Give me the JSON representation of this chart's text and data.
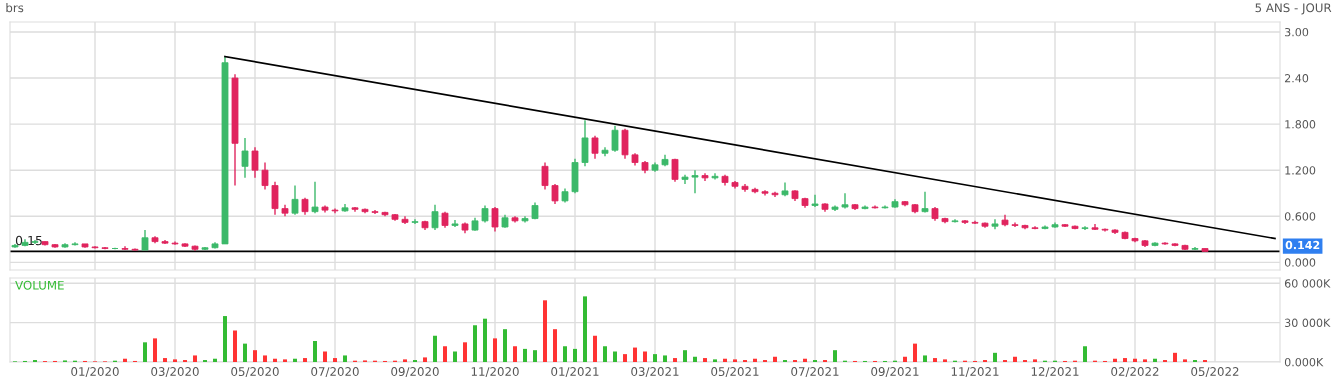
{
  "chart_data": [
    {
      "type": "candlestick",
      "title": "brs",
      "subtitle": "5 ANS - JOUR",
      "categories": [
        null,
        null,
        null,
        null,
        null,
        null,
        null,
        null,
        null,
        null,
        null,
        null,
        null,
        null,
        null,
        null,
        null,
        null,
        null,
        null,
        null,
        null,
        null,
        null,
        null,
        null,
        null,
        null,
        null,
        null,
        null,
        null,
        null,
        null,
        null,
        null,
        null,
        null,
        null,
        null,
        null,
        null,
        null,
        null,
        null,
        null,
        null,
        null,
        null,
        null,
        null,
        null,
        null,
        null,
        null,
        null,
        null,
        null,
        null,
        null,
        null,
        null,
        null,
        null,
        null,
        null,
        null,
        null,
        null,
        null,
        null,
        null,
        null,
        null,
        null,
        null,
        null,
        null,
        null,
        null,
        null,
        null,
        null,
        null,
        null,
        null,
        null,
        null,
        null,
        null,
        null,
        null,
        null,
        null,
        null,
        null,
        null,
        null,
        null,
        null,
        null,
        null,
        null,
        null,
        null,
        null,
        null,
        null,
        null,
        null,
        null,
        null,
        null,
        null,
        null,
        null,
        null,
        null,
        null,
        null,
        null,
        null,
        null,
        null,
        null,
        null,
        null
      ],
      "ohlc": [
        [
          0.2,
          0.24,
          0.19,
          0.22
        ],
        [
          0.22,
          0.3,
          0.21,
          0.26
        ],
        [
          0.26,
          0.29,
          0.24,
          0.27
        ],
        [
          0.27,
          0.27,
          0.22,
          0.23
        ],
        [
          0.23,
          0.24,
          0.19,
          0.2
        ],
        [
          0.2,
          0.25,
          0.19,
          0.23
        ],
        [
          0.23,
          0.26,
          0.22,
          0.24
        ],
        [
          0.24,
          0.24,
          0.19,
          0.2
        ],
        [
          0.2,
          0.21,
          0.18,
          0.19
        ],
        [
          0.19,
          0.2,
          0.17,
          0.18
        ],
        [
          0.18,
          0.19,
          0.17,
          0.18
        ],
        [
          0.18,
          0.21,
          0.16,
          0.17
        ],
        [
          0.17,
          0.18,
          0.15,
          0.16
        ],
        [
          0.16,
          0.42,
          0.16,
          0.32
        ],
        [
          0.32,
          0.34,
          0.25,
          0.27
        ],
        [
          0.27,
          0.29,
          0.24,
          0.25
        ],
        [
          0.25,
          0.27,
          0.23,
          0.24
        ],
        [
          0.24,
          0.25,
          0.2,
          0.21
        ],
        [
          0.21,
          0.22,
          0.15,
          0.17
        ],
        [
          0.17,
          0.2,
          0.16,
          0.19
        ],
        [
          0.19,
          0.26,
          0.18,
          0.24
        ],
        [
          0.24,
          2.68,
          0.24,
          2.6
        ],
        [
          2.4,
          2.45,
          1.0,
          1.55
        ],
        [
          1.25,
          1.62,
          1.1,
          1.45
        ],
        [
          1.45,
          1.5,
          1.1,
          1.2
        ],
        [
          1.2,
          1.3,
          0.95,
          1.0
        ],
        [
          1.0,
          1.05,
          0.62,
          0.7
        ],
        [
          0.7,
          0.75,
          0.6,
          0.64
        ],
        [
          0.64,
          1.0,
          0.62,
          0.82
        ],
        [
          0.82,
          0.84,
          0.62,
          0.66
        ],
        [
          0.66,
          1.05,
          0.64,
          0.72
        ],
        [
          0.72,
          0.74,
          0.65,
          0.68
        ],
        [
          0.68,
          0.7,
          0.64,
          0.67
        ],
        [
          0.67,
          0.76,
          0.66,
          0.71
        ],
        [
          0.71,
          0.72,
          0.66,
          0.69
        ],
        [
          0.69,
          0.7,
          0.64,
          0.66
        ],
        [
          0.66,
          0.68,
          0.63,
          0.65
        ],
        [
          0.65,
          0.66,
          0.6,
          0.62
        ],
        [
          0.62,
          0.63,
          0.54,
          0.56
        ],
        [
          0.56,
          0.6,
          0.5,
          0.52
        ],
        [
          0.52,
          0.56,
          0.5,
          0.53
        ],
        [
          0.53,
          0.54,
          0.42,
          0.45
        ],
        [
          0.45,
          0.75,
          0.42,
          0.66
        ],
        [
          0.64,
          0.66,
          0.45,
          0.48
        ],
        [
          0.48,
          0.55,
          0.46,
          0.5
        ],
        [
          0.5,
          0.52,
          0.38,
          0.42
        ],
        [
          0.42,
          0.58,
          0.41,
          0.54
        ],
        [
          0.54,
          0.74,
          0.52,
          0.7
        ],
        [
          0.7,
          0.72,
          0.4,
          0.46
        ],
        [
          0.46,
          0.62,
          0.45,
          0.58
        ],
        [
          0.58,
          0.6,
          0.52,
          0.54
        ],
        [
          0.54,
          0.6,
          0.52,
          0.57
        ],
        [
          0.57,
          0.78,
          0.56,
          0.74
        ],
        [
          1.25,
          1.3,
          0.95,
          1.0
        ],
        [
          1.0,
          1.02,
          0.76,
          0.8
        ],
        [
          0.8,
          0.96,
          0.78,
          0.92
        ],
        [
          0.92,
          1.35,
          0.9,
          1.3
        ],
        [
          1.3,
          1.85,
          1.25,
          1.62
        ],
        [
          1.62,
          1.65,
          1.35,
          1.42
        ],
        [
          1.42,
          1.5,
          1.38,
          1.46
        ],
        [
          1.46,
          1.78,
          1.44,
          1.72
        ],
        [
          1.72,
          1.74,
          1.35,
          1.4
        ],
        [
          1.4,
          1.42,
          1.26,
          1.3
        ],
        [
          1.3,
          1.32,
          1.16,
          1.2
        ],
        [
          1.2,
          1.3,
          1.18,
          1.27
        ],
        [
          1.27,
          1.4,
          1.25,
          1.34
        ],
        [
          1.34,
          1.35,
          1.05,
          1.08
        ],
        [
          1.08,
          1.14,
          1.02,
          1.11
        ],
        [
          1.11,
          1.2,
          0.9,
          1.13
        ],
        [
          1.13,
          1.16,
          1.06,
          1.1
        ],
        [
          1.1,
          1.16,
          1.08,
          1.12
        ],
        [
          1.12,
          1.14,
          1.0,
          1.04
        ],
        [
          1.04,
          1.06,
          0.96,
          0.99
        ],
        [
          0.99,
          1.02,
          0.92,
          0.95
        ],
        [
          0.95,
          0.97,
          0.9,
          0.92
        ],
        [
          0.92,
          0.94,
          0.87,
          0.9
        ],
        [
          0.9,
          0.92,
          0.85,
          0.88
        ],
        [
          0.88,
          1.04,
          0.86,
          0.93
        ],
        [
          0.93,
          0.94,
          0.8,
          0.83
        ],
        [
          0.83,
          0.84,
          0.71,
          0.74
        ],
        [
          0.74,
          0.88,
          0.72,
          0.76
        ],
        [
          0.76,
          0.77,
          0.66,
          0.69
        ],
        [
          0.69,
          0.74,
          0.67,
          0.72
        ],
        [
          0.72,
          0.9,
          0.7,
          0.75
        ],
        [
          0.75,
          0.76,
          0.68,
          0.7
        ],
        [
          0.7,
          0.74,
          0.69,
          0.72
        ],
        [
          0.72,
          0.74,
          0.7,
          0.71
        ],
        [
          0.71,
          0.74,
          0.7,
          0.72
        ],
        [
          0.72,
          0.82,
          0.71,
          0.79
        ],
        [
          0.79,
          0.8,
          0.73,
          0.75
        ],
        [
          0.75,
          0.76,
          0.64,
          0.66
        ],
        [
          0.66,
          0.92,
          0.65,
          0.7
        ],
        [
          0.7,
          0.72,
          0.54,
          0.57
        ],
        [
          0.57,
          0.58,
          0.51,
          0.53
        ],
        [
          0.53,
          0.56,
          0.52,
          0.54
        ],
        [
          0.54,
          0.55,
          0.5,
          0.52
        ],
        [
          0.52,
          0.54,
          0.5,
          0.51
        ],
        [
          0.51,
          0.52,
          0.45,
          0.47
        ],
        [
          0.47,
          0.56,
          0.43,
          0.5
        ],
        [
          0.55,
          0.62,
          0.47,
          0.49
        ],
        [
          0.49,
          0.52,
          0.46,
          0.48
        ],
        [
          0.48,
          0.49,
          0.43,
          0.45
        ],
        [
          0.45,
          0.47,
          0.43,
          0.44
        ],
        [
          0.44,
          0.48,
          0.43,
          0.46
        ],
        [
          0.46,
          0.52,
          0.45,
          0.49
        ],
        [
          0.49,
          0.5,
          0.46,
          0.47
        ],
        [
          0.47,
          0.48,
          0.43,
          0.44
        ],
        [
          0.44,
          0.47,
          0.42,
          0.45
        ],
        [
          0.45,
          0.5,
          0.42,
          0.43
        ],
        [
          0.43,
          0.44,
          0.4,
          0.42
        ],
        [
          0.42,
          0.43,
          0.37,
          0.39
        ],
        [
          0.39,
          0.4,
          0.3,
          0.31
        ],
        [
          0.31,
          0.32,
          0.26,
          0.28
        ],
        [
          0.28,
          0.29,
          0.2,
          0.22
        ],
        [
          0.22,
          0.26,
          0.21,
          0.25
        ],
        [
          0.25,
          0.26,
          0.23,
          0.24
        ],
        [
          0.24,
          0.25,
          0.21,
          0.22
        ],
        [
          0.22,
          0.23,
          0.16,
          0.17
        ],
        [
          0.17,
          0.2,
          0.16,
          0.18
        ],
        [
          0.18,
          0.18,
          0.14,
          0.142
        ],
        null,
        null,
        null,
        null,
        null,
        null,
        null
      ],
      "colors": [
        "#3cb96a",
        "#3cb96a",
        "#3cb96a",
        "#e0245e",
        "#e0245e",
        "#3cb96a",
        "#3cb96a",
        "#e0245e",
        "#e0245e",
        "#e0245e",
        "#3cb96a",
        "#e0245e",
        "#e0245e",
        "#3cb96a",
        "#e0245e",
        "#e0245e",
        "#e0245e",
        "#e0245e",
        "#e0245e",
        "#3cb96a",
        "#3cb96a",
        "#3cb96a",
        "#e0245e",
        "#3cb96a",
        "#e0245e",
        "#e0245e",
        "#e0245e",
        "#e0245e",
        "#3cb96a",
        "#e0245e",
        "#3cb96a",
        "#e0245e",
        "#e0245e",
        "#3cb96a",
        "#e0245e",
        "#e0245e",
        "#e0245e",
        "#e0245e",
        "#e0245e",
        "#e0245e",
        "#3cb96a",
        "#e0245e",
        "#3cb96a",
        "#e0245e",
        "#3cb96a",
        "#e0245e",
        "#3cb96a",
        "#3cb96a",
        "#e0245e",
        "#3cb96a",
        "#e0245e",
        "#3cb96a",
        "#3cb96a",
        "#e0245e",
        "#e0245e",
        "#3cb96a",
        "#3cb96a",
        "#3cb96a",
        "#e0245e",
        "#3cb96a",
        "#3cb96a",
        "#e0245e",
        "#e0245e",
        "#e0245e",
        "#3cb96a",
        "#3cb96a",
        "#e0245e",
        "#3cb96a",
        "#3cb96a",
        "#e0245e",
        "#3cb96a",
        "#e0245e",
        "#e0245e",
        "#e0245e",
        "#e0245e",
        "#e0245e",
        "#e0245e",
        "#3cb96a",
        "#e0245e",
        "#e0245e",
        "#3cb96a",
        "#e0245e",
        "#3cb96a",
        "#3cb96a",
        "#e0245e",
        "#3cb96a",
        "#e0245e",
        "#3cb96a",
        "#3cb96a",
        "#e0245e",
        "#e0245e",
        "#3cb96a",
        "#e0245e",
        "#e0245e",
        "#3cb96a",
        "#e0245e",
        "#e0245e",
        "#e0245e",
        "#3cb96a",
        "#e0245e",
        "#e0245e",
        "#e0245e",
        "#e0245e",
        "#3cb96a",
        "#3cb96a",
        "#e0245e",
        "#e0245e",
        "#3cb96a",
        "#e0245e",
        "#e0245e",
        "#e0245e",
        "#e0245e",
        "#e0245e",
        "#e0245e",
        "#3cb96a",
        "#e0245e",
        "#e0245e",
        "#e0245e",
        "#3cb96a",
        "#e0245e",
        null,
        null,
        null,
        null,
        null,
        null,
        null
      ],
      "series": [
        {
          "type": "line",
          "color": "#000000",
          "values": [
            null,
            null,
            null,
            null,
            null,
            null,
            null,
            null,
            null,
            null,
            null,
            null,
            null,
            null,
            null,
            null,
            null,
            null,
            null,
            null,
            null,
            2.68,
            null,
            null,
            null,
            null,
            null,
            null,
            null,
            null,
            null,
            null,
            null,
            null,
            null,
            null,
            null,
            null,
            null,
            null,
            null,
            null,
            null,
            null,
            null,
            null,
            null,
            null,
            null,
            null,
            null,
            null,
            null,
            null,
            null,
            null,
            null,
            null,
            null,
            null,
            null,
            null,
            null,
            null,
            null,
            null,
            null,
            null,
            null,
            null,
            null,
            null,
            null,
            null,
            null,
            null,
            null,
            null,
            null,
            null,
            null,
            null,
            null,
            null,
            null,
            null,
            null,
            null,
            null,
            null,
            null,
            null,
            null,
            null,
            null,
            null,
            null,
            null,
            null,
            null,
            null,
            null,
            null,
            null,
            null,
            null,
            null,
            null,
            null,
            null,
            null,
            null,
            null,
            null,
            null,
            null,
            null,
            null,
            null,
            null,
            null,
            null,
            null,
            null,
            null,
            null,
            0.31
          ]
        }
      ],
      "ylim": [
        -0.1,
        3.13
      ],
      "yticks": [
        {
          "value": 0,
          "label": "0.000"
        },
        {
          "value": 0.6,
          "label": "0.600"
        },
        {
          "value": 1.2,
          "label": "1.200"
        },
        {
          "value": 1.8,
          "label": "1.800"
        },
        {
          "value": 2.4,
          "label": "2.40"
        },
        {
          "value": 3.0,
          "label": "3.00"
        }
      ],
      "ref_lines": [
        {
          "axis": "y",
          "value": 0.142,
          "label": "0.142",
          "color": "#000000"
        }
      ],
      "annotations": [
        "0.15"
      ],
      "grid": true,
      "tick_labels": "y"
    },
    {
      "type": "bar",
      "title": "VOLUME",
      "categories": [
        null,
        null,
        null,
        null,
        null,
        null,
        null,
        null,
        "01/2020",
        null,
        null,
        null,
        null,
        null,
        null,
        null,
        "03/2020",
        null,
        null,
        null,
        null,
        null,
        null,
        null,
        "05/2020",
        null,
        null,
        null,
        null,
        null,
        null,
        null,
        "07/2020",
        null,
        null,
        null,
        null,
        null,
        null,
        null,
        "09/2020",
        null,
        null,
        null,
        null,
        null,
        null,
        null,
        "11/2020",
        null,
        null,
        null,
        null,
        null,
        null,
        null,
        "01/2021",
        null,
        null,
        null,
        null,
        null,
        null,
        null,
        "03/2021",
        null,
        null,
        null,
        null,
        null,
        null,
        null,
        "05/2021",
        null,
        null,
        null,
        null,
        null,
        null,
        null,
        "07/2021",
        null,
        null,
        null,
        null,
        null,
        null,
        null,
        "09/2021",
        null,
        null,
        null,
        null,
        null,
        null,
        null,
        "11/2021",
        null,
        null,
        null,
        null,
        null,
        null,
        null,
        "12/2021",
        null,
        null,
        null,
        null,
        null,
        null,
        null,
        "02/2022",
        null,
        null,
        null,
        null,
        null,
        null,
        null,
        "05/2022",
        null,
        null,
        null,
        null,
        null,
        null
      ],
      "values": [
        500,
        800,
        1500,
        700,
        800,
        1200,
        1000,
        800,
        500,
        500,
        1000,
        2500,
        800,
        15000,
        18000,
        3000,
        2000,
        1500,
        5000,
        1500,
        2500,
        35000,
        24000,
        14000,
        9000,
        5000,
        2500,
        2000,
        2500,
        3000,
        16000,
        8000,
        3000,
        5000,
        1000,
        1200,
        1000,
        800,
        1000,
        2000,
        1500,
        3500,
        20000,
        12000,
        8000,
        15000,
        28000,
        33000,
        18000,
        25000,
        12000,
        10000,
        9000,
        47000,
        25000,
        12000,
        10000,
        50000,
        20000,
        12000,
        8000,
        6000,
        11000,
        8000,
        6000,
        5000,
        3000,
        9000,
        4000,
        3000,
        2000,
        2500,
        2000,
        1500,
        2500,
        1500,
        4000,
        1500,
        1500,
        2500,
        1500,
        1500,
        9000,
        1000,
        800,
        800,
        800,
        800,
        1000,
        4000,
        14000,
        5000,
        3000,
        2000,
        1000,
        1000,
        800,
        1500,
        7000,
        1500,
        4000,
        1500,
        2000,
        1000,
        1000,
        800,
        1000,
        12000,
        1000,
        800,
        2500,
        3000,
        2500,
        2000,
        2500,
        1500,
        7000,
        2000,
        1500,
        1500,
        null,
        null,
        null,
        null,
        null,
        null,
        null
      ],
      "colors": [
        "#33bb33",
        "#33bb33",
        "#33bb33",
        "#ff3333",
        "#ff3333",
        "#33bb33",
        "#33bb33",
        "#ff3333",
        "#ff3333",
        "#ff3333",
        "#33bb33",
        "#ff3333",
        "#ff3333",
        "#33bb33",
        "#ff3333",
        "#ff3333",
        "#ff3333",
        "#ff3333",
        "#ff3333",
        "#33bb33",
        "#33bb33",
        "#33bb33",
        "#ff3333",
        "#33bb33",
        "#ff3333",
        "#ff3333",
        "#ff3333",
        "#ff3333",
        "#33bb33",
        "#ff3333",
        "#33bb33",
        "#ff3333",
        "#ff3333",
        "#33bb33",
        "#ff3333",
        "#ff3333",
        "#ff3333",
        "#ff3333",
        "#ff3333",
        "#ff3333",
        "#33bb33",
        "#ff3333",
        "#33bb33",
        "#ff3333",
        "#33bb33",
        "#ff3333",
        "#33bb33",
        "#33bb33",
        "#ff3333",
        "#33bb33",
        "#ff3333",
        "#33bb33",
        "#33bb33",
        "#ff3333",
        "#ff3333",
        "#33bb33",
        "#33bb33",
        "#33bb33",
        "#ff3333",
        "#33bb33",
        "#33bb33",
        "#ff3333",
        "#ff3333",
        "#ff3333",
        "#33bb33",
        "#33bb33",
        "#ff3333",
        "#33bb33",
        "#33bb33",
        "#ff3333",
        "#33bb33",
        "#ff3333",
        "#ff3333",
        "#ff3333",
        "#ff3333",
        "#ff3333",
        "#ff3333",
        "#33bb33",
        "#ff3333",
        "#ff3333",
        "#33bb33",
        "#ff3333",
        "#33bb33",
        "#33bb33",
        "#ff3333",
        "#33bb33",
        "#ff3333",
        "#33bb33",
        "#33bb33",
        "#ff3333",
        "#ff3333",
        "#33bb33",
        "#ff3333",
        "#ff3333",
        "#33bb33",
        "#ff3333",
        "#ff3333",
        "#ff3333",
        "#33bb33",
        "#ff3333",
        "#ff3333",
        "#ff3333",
        "#ff3333",
        "#33bb33",
        "#33bb33",
        "#ff3333",
        "#ff3333",
        "#33bb33",
        "#ff3333",
        "#ff3333",
        "#ff3333",
        "#ff3333",
        "#ff3333",
        "#ff3333",
        "#33bb33",
        "#ff3333",
        "#ff3333",
        "#ff3333",
        "#33bb33",
        "#ff3333",
        null,
        null,
        null,
        null,
        null,
        null,
        null
      ],
      "ylim": [
        0,
        64000
      ],
      "yticks": [
        {
          "value": 0,
          "label": "0.000K"
        },
        {
          "value": 30000,
          "label": "30 000K"
        },
        {
          "value": 60000,
          "label": "60 000K"
        }
      ],
      "grid": true
    }
  ]
}
